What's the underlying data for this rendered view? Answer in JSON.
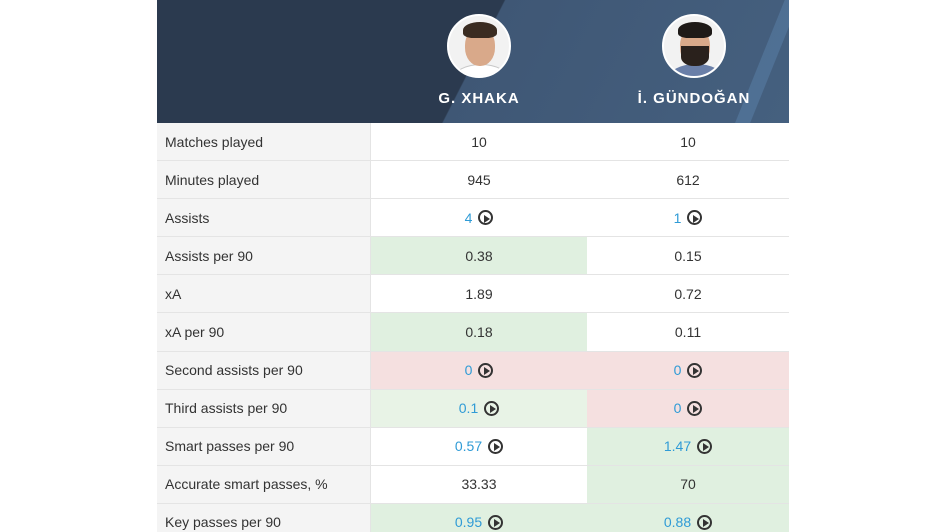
{
  "players": [
    {
      "name": "G. XHAKA"
    },
    {
      "name": "İ. GÜNDOĞAN"
    }
  ],
  "rows": [
    {
      "label": "Matches played",
      "p1": "10",
      "p2": "10"
    },
    {
      "label": "Minutes played",
      "p1": "945",
      "p2": "612"
    },
    {
      "label": "Assists",
      "p1": "4",
      "p2": "1"
    },
    {
      "label": "Assists per 90",
      "p1": "0.38",
      "p2": "0.15"
    },
    {
      "label": "xA",
      "p1": "1.89",
      "p2": "0.72"
    },
    {
      "label": "xA per 90",
      "p1": "0.18",
      "p2": "0.11"
    },
    {
      "label": "Second assists per 90",
      "p1": "0",
      "p2": "0"
    },
    {
      "label": "Third assists per 90",
      "p1": "0.1",
      "p2": "0"
    },
    {
      "label": "Smart passes per 90",
      "p1": "0.57",
      "p2": "1.47"
    },
    {
      "label": "Accurate smart passes, %",
      "p1": "33.33",
      "p2": "70"
    },
    {
      "label": "Key passes per 90",
      "p1": "0.95",
      "p2": "0.88"
    }
  ],
  "colors": {
    "header_dark": "#2b3a4f",
    "header_light": "#45607f",
    "better": "#e0f0e0",
    "worse": "#f5e0e0",
    "link": "#2f9bd6"
  }
}
